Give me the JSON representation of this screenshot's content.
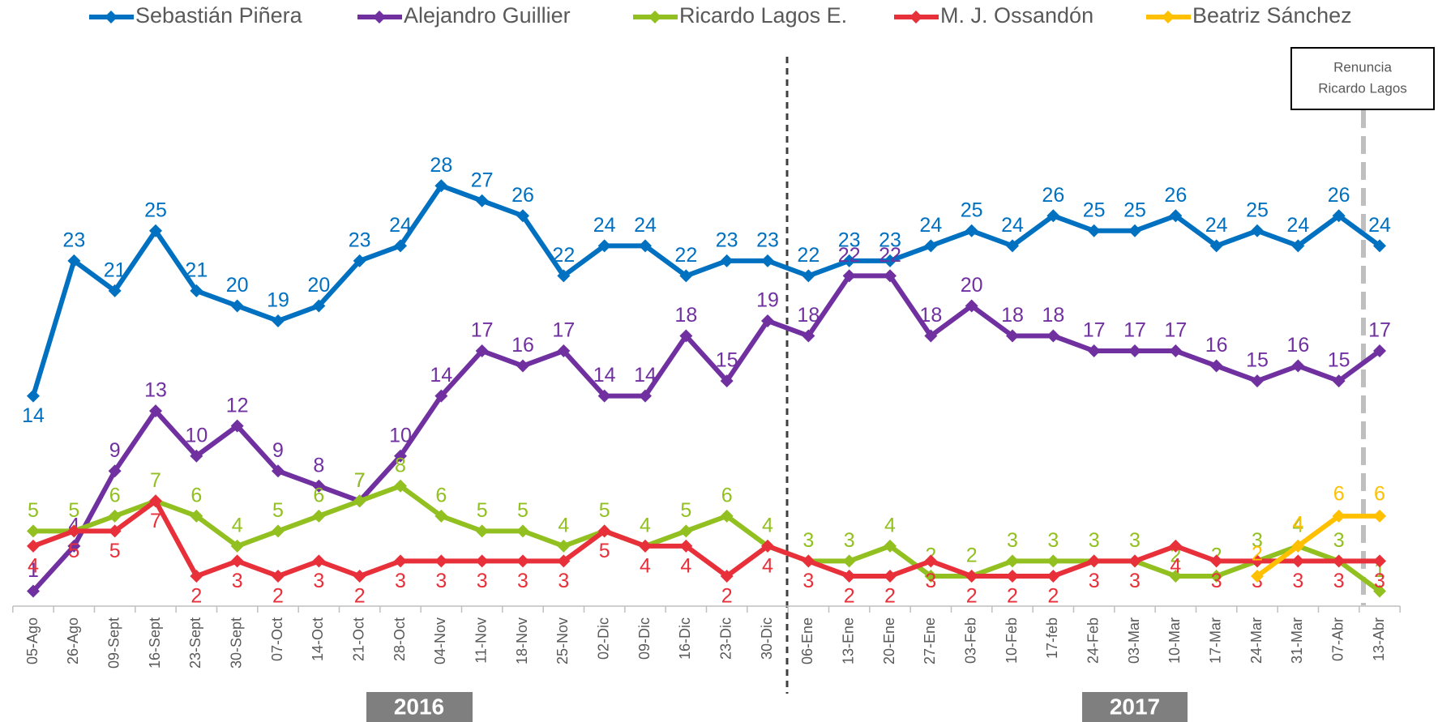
{
  "chart_data": {
    "type": "line",
    "categories": [
      "05-Ago",
      "26-Ago",
      "09-Sept",
      "16-Sept",
      "23-Sept",
      "30-Sept",
      "07-Oct",
      "14-Oct",
      "21-Oct",
      "28-Oct",
      "04-Nov",
      "11-Nov",
      "18-Nov",
      "25-Nov",
      "02-Dic",
      "09-Dic",
      "16-Dic",
      "23-Dic",
      "30-Dic",
      "06-Ene",
      "13-Ene",
      "20-Ene",
      "27-Ene",
      "03-Feb",
      "10-Feb",
      "17-feb",
      "24-Feb",
      "03-Mar",
      "10-Mar",
      "17-Mar",
      "24-Mar",
      "31-Mar",
      "07-Abr",
      "13-Abr"
    ],
    "series": [
      {
        "name": "Sebastián Piñera",
        "color": "#0070c0",
        "values": [
          14,
          23,
          21,
          25,
          21,
          20,
          19,
          20,
          23,
          24,
          28,
          27,
          26,
          22,
          24,
          24,
          22,
          23,
          23,
          22,
          23,
          23,
          24,
          25,
          24,
          26,
          25,
          25,
          26,
          24,
          25,
          24,
          26,
          24
        ]
      },
      {
        "name": "Alejandro  Guillier",
        "color": "#7030a0",
        "values": [
          1,
          4,
          9,
          13,
          10,
          12,
          9,
          8,
          7,
          10,
          14,
          17,
          16,
          17,
          14,
          14,
          18,
          15,
          19,
          18,
          22,
          22,
          18,
          20,
          18,
          18,
          17,
          17,
          17,
          16,
          15,
          16,
          15,
          17
        ]
      },
      {
        "name": "Ricardo Lagos E.",
        "color": "#92c020",
        "values": [
          5,
          5,
          6,
          7,
          6,
          4,
          5,
          6,
          7,
          8,
          6,
          5,
          5,
          4,
          5,
          4,
          5,
          6,
          4,
          3,
          3,
          4,
          2,
          2,
          3,
          3,
          3,
          3,
          2,
          2,
          3,
          4,
          3,
          1
        ]
      },
      {
        "name": "M. J. Ossandón",
        "color": "#e8303a",
        "values": [
          4,
          5,
          5,
          7,
          2,
          3,
          2,
          3,
          2,
          3,
          3,
          3,
          3,
          3,
          5,
          4,
          4,
          2,
          4,
          3,
          2,
          2,
          3,
          2,
          2,
          2,
          3,
          3,
          4,
          3,
          3,
          3,
          3,
          3
        ]
      },
      {
        "name": "Beatriz Sánchez",
        "color": "#ffc000",
        "values": [
          null,
          null,
          null,
          null,
          null,
          null,
          null,
          null,
          null,
          null,
          null,
          null,
          null,
          null,
          null,
          null,
          null,
          null,
          null,
          null,
          null,
          null,
          null,
          null,
          null,
          null,
          null,
          null,
          null,
          null,
          2,
          4,
          6,
          6
        ]
      }
    ],
    "ylim": [
      0,
      36
    ],
    "year_labels": [
      "2016",
      "2017"
    ],
    "annotation": [
      "Renuncia",
      "Ricardo Lagos"
    ]
  }
}
